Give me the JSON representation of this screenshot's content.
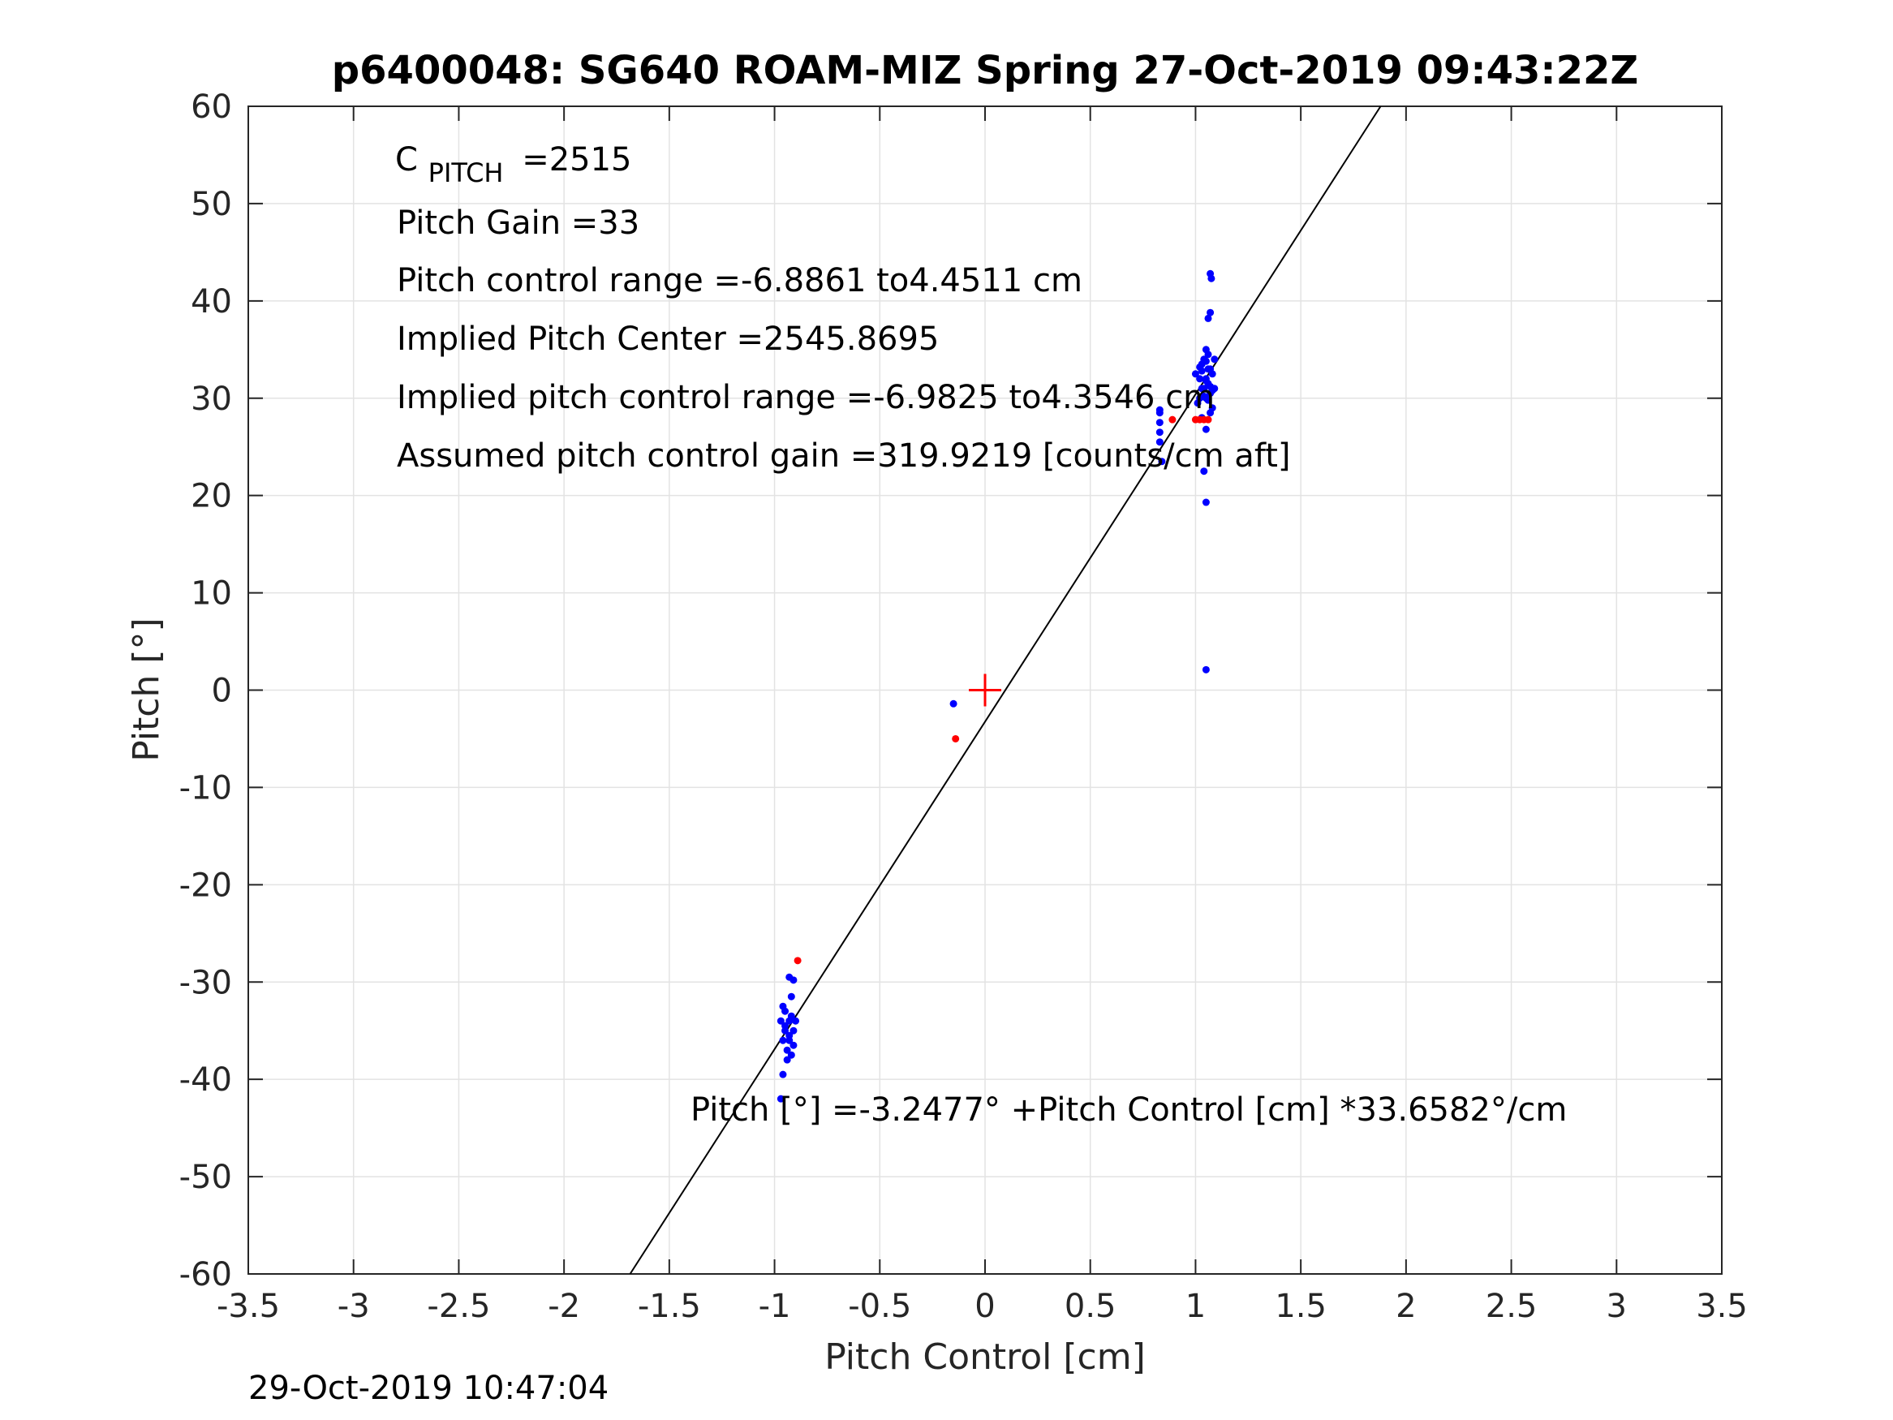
{
  "chart_data": {
    "type": "scatter",
    "title": "p6400048: SG640 ROAM-MIZ Spring 27-Oct-2019 09:43:22Z",
    "xlabel": "Pitch Control [cm]",
    "ylabel": "Pitch [°]",
    "xlim": [
      -3.5,
      3.5
    ],
    "ylim": [
      -60,
      60
    ],
    "xticks": [
      -3.5,
      -3,
      -2.5,
      -2,
      -1.5,
      -1,
      -0.5,
      0,
      0.5,
      1,
      1.5,
      2,
      2.5,
      3,
      3.5
    ],
    "xtick_labels": [
      "-3.5",
      "-3",
      "-2.5",
      "-2",
      "-1.5",
      "-1",
      "-0.5",
      "0",
      "0.5",
      "1",
      "1.5",
      "2",
      "2.5",
      "3",
      "3.5"
    ],
    "yticks": [
      -60,
      -50,
      -40,
      -30,
      -20,
      -10,
      0,
      10,
      20,
      30,
      40,
      50,
      60
    ],
    "ytick_labels": [
      "-60",
      "-50",
      "-40",
      "-30",
      "-20",
      "-10",
      "0",
      "10",
      "20",
      "30",
      "40",
      "50",
      "60"
    ],
    "grid": true,
    "colors": {
      "blue": "#0000ff",
      "red": "#ff0000",
      "line": "#000000"
    },
    "fit_line": {
      "intercept": -3.2477,
      "slope": 33.6582
    },
    "center_marker": {
      "x": 0,
      "y": 0,
      "color": "#ff0000",
      "symbol": "+"
    },
    "series": [
      {
        "color": "#0000ff",
        "points": [
          [
            1.03,
            31
          ],
          [
            1.05,
            32
          ],
          [
            1.07,
            33
          ],
          [
            1.02,
            30
          ],
          [
            1.06,
            31.5
          ],
          [
            1.08,
            32.5
          ],
          [
            1.04,
            34
          ],
          [
            1.09,
            31
          ],
          [
            1.01,
            29.5
          ],
          [
            1.05,
            35
          ],
          [
            1.03,
            33.5
          ],
          [
            1.07,
            30.5
          ],
          [
            1.06,
            34.5
          ],
          [
            1.04,
            31
          ],
          [
            1.02,
            32
          ],
          [
            1.08,
            29
          ],
          [
            1.05,
            30
          ],
          [
            1.0,
            32.5
          ],
          [
            1.03,
            28
          ],
          [
            1.06,
            33
          ],
          [
            1.09,
            34
          ],
          [
            1.07,
            28.5
          ],
          [
            1.05,
            31.8
          ],
          [
            1.04,
            30.2
          ],
          [
            1.06,
            29.8
          ],
          [
            1.02,
            33.2
          ],
          [
            1.08,
            30.8
          ],
          [
            1.03,
            32.8
          ],
          [
            1.05,
            33.8
          ],
          [
            1.07,
            31.2
          ],
          [
            1.07,
            42.8
          ],
          [
            1.075,
            42.3
          ],
          [
            1.07,
            38.8
          ],
          [
            1.06,
            38.2
          ],
          [
            1.05,
            26.8
          ],
          [
            1.04,
            22.5
          ],
          [
            1.05,
            19.3
          ],
          [
            1.05,
            2.1
          ],
          [
            0.83,
            28.5
          ],
          [
            0.83,
            27.5
          ],
          [
            0.83,
            26.5
          ],
          [
            0.83,
            25.5
          ],
          [
            0.84,
            23.5
          ],
          [
            0.83,
            28.8
          ],
          [
            -0.15,
            -1.4
          ],
          [
            -0.95,
            -33
          ],
          [
            -0.93,
            -34
          ],
          [
            -0.91,
            -35
          ],
          [
            -0.96,
            -36
          ],
          [
            -0.94,
            -37
          ],
          [
            -0.92,
            -33.5
          ],
          [
            -0.95,
            -34.5
          ],
          [
            -0.93,
            -35.5
          ],
          [
            -0.91,
            -36.5
          ],
          [
            -0.96,
            -32.5
          ],
          [
            -0.94,
            -38
          ],
          [
            -0.92,
            -37.5
          ],
          [
            -0.95,
            -35
          ],
          [
            -0.93,
            -36
          ],
          [
            -0.9,
            -34
          ],
          [
            -0.97,
            -34
          ],
          [
            -0.93,
            -29.5
          ],
          [
            -0.91,
            -29.8
          ],
          [
            -0.92,
            -31.5
          ],
          [
            -0.96,
            -39.5
          ],
          [
            -0.97,
            -42
          ]
        ]
      },
      {
        "color": "#ff0000",
        "points": [
          [
            1.0,
            27.8
          ],
          [
            1.02,
            27.8
          ],
          [
            1.04,
            27.8
          ],
          [
            1.06,
            27.8
          ],
          [
            0.89,
            27.8
          ],
          [
            -0.14,
            -5.0
          ],
          [
            -0.89,
            -27.8
          ]
        ]
      }
    ],
    "annotations": {
      "c_pitch_main": "C",
      "c_pitch_sub": "PITCH",
      "c_pitch_val": "=2515",
      "pitch_gain": "Pitch Gain =33",
      "control_range": "Pitch control range =-6.8861 to4.4511 cm",
      "implied_center": "Implied Pitch Center =2545.8695",
      "implied_range": "Implied pitch control range =-6.9825 to4.3546 cm",
      "assumed_gain": "Assumed pitch control gain =319.9219 [counts/cm aft]",
      "fit_equation": "Pitch [°] =-3.2477° +Pitch Control [cm] *33.6582°/cm"
    },
    "timestamp": "29-Oct-2019 10:47:04"
  }
}
